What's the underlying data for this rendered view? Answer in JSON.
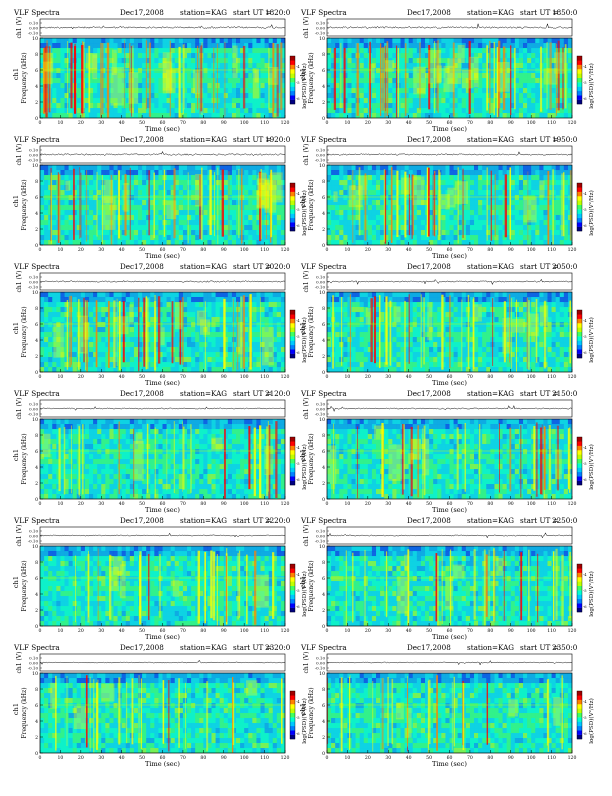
{
  "header": {
    "title": "VLF Spectra",
    "date": "Dec17,2008",
    "station": "station=KAG",
    "start_prefix": "start  UT  ="
  },
  "labels": {
    "wave_ylabel": "ch1 (V)",
    "spec_ylabel": "ch1",
    "freq_ylabel": "Frequency  (kHz)",
    "xlabel": "Time  (sec)",
    "colorbar_label": "log(PSD)(V²/Hz)"
  },
  "colors": {
    "colormap": [
      "#000080",
      "#0000ff",
      "#0080ff",
      "#00c8ff",
      "#00ffd0",
      "#40ff60",
      "#c0ff00",
      "#ffff00",
      "#ff8000",
      "#ff0000",
      "#a00000"
    ],
    "background_mean": "#20e0c0"
  },
  "chart_data": {
    "type": "heatmap",
    "panel_count": 12,
    "x_range": [
      0,
      120
    ],
    "x_ticks": [
      0,
      10,
      20,
      30,
      40,
      50,
      60,
      70,
      80,
      90,
      100,
      110,
      120
    ],
    "y_range_khz": [
      0,
      10
    ],
    "y_ticks": [
      0,
      2,
      4,
      6,
      8,
      10
    ],
    "wave_ticks": [
      "0.10",
      "0.00",
      "-0.10"
    ],
    "colorbar_ticks": [
      "-4",
      "-5",
      "-6"
    ],
    "panels": [
      {
        "start_ut": "1820:0",
        "activity": 0.85
      },
      {
        "start_ut": "1850:0",
        "activity": 0.8
      },
      {
        "start_ut": "1920:0",
        "activity": 0.65
      },
      {
        "start_ut": "1950:0",
        "activity": 0.55
      },
      {
        "start_ut": "2020:0",
        "activity": 0.6
      },
      {
        "start_ut": "2050:0",
        "activity": 0.45
      },
      {
        "start_ut": "2120:0",
        "activity": 0.3
      },
      {
        "start_ut": "2150:0",
        "activity": 0.4
      },
      {
        "start_ut": "2220:0",
        "activity": 0.25
      },
      {
        "start_ut": "2250:0",
        "activity": 0.3
      },
      {
        "start_ut": "2320:0",
        "activity": 0.2
      },
      {
        "start_ut": "2350:0",
        "activity": 0.22
      }
    ]
  }
}
